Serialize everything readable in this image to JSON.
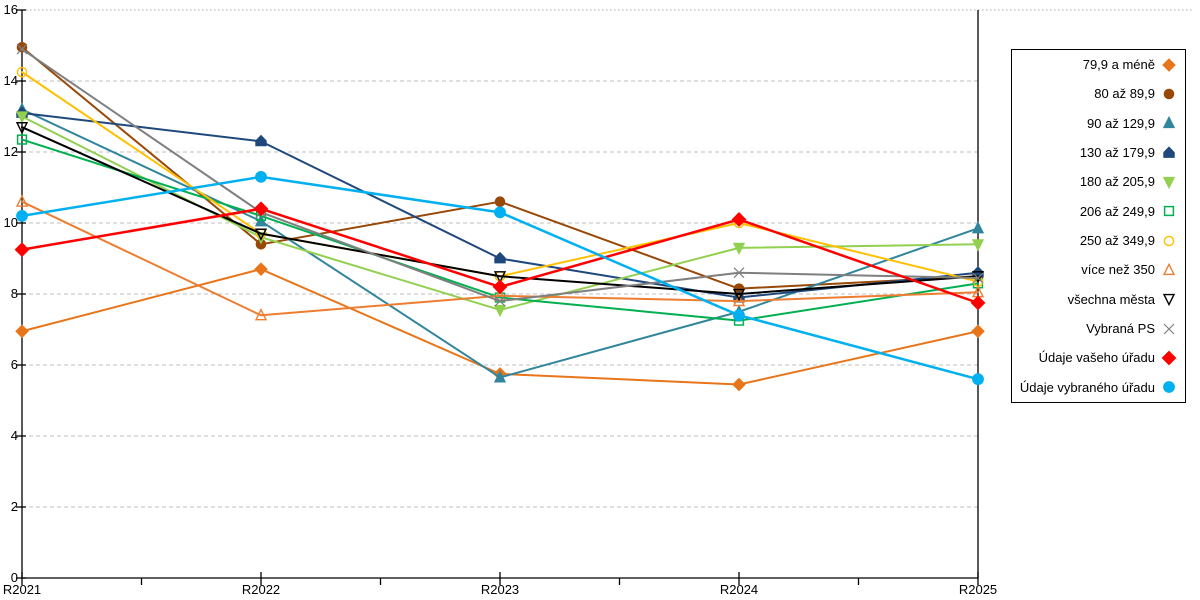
{
  "chart_data": {
    "type": "line",
    "title": "",
    "xlabel": "",
    "ylabel": "",
    "x_categories": [
      "R2021",
      "R2022",
      "R2023",
      "R2024",
      "R2025"
    ],
    "ylim": [
      0,
      16
    ],
    "ytick_step": 2,
    "ytick_labels": [
      "0",
      "2",
      "4",
      "6",
      "8",
      "10",
      "12",
      "14",
      "16"
    ],
    "grid": "horizontal-dashed",
    "legend_position": "right-outside-box",
    "series": [
      {
        "name": "79,9 a méně",
        "color": "#E8751A",
        "marker": "diamond",
        "fill": "filled",
        "line_width": 2,
        "values": [
          6.95,
          8.7,
          5.75,
          5.45,
          6.95
        ]
      },
      {
        "name": "80 až 89,9",
        "color": "#984807",
        "marker": "circle",
        "fill": "filled",
        "line_width": 2,
        "values": [
          14.95,
          9.4,
          10.6,
          8.15,
          8.5
        ]
      },
      {
        "name": "90 až 129,9",
        "color": "#31859C",
        "marker": "triangle-up",
        "fill": "filled",
        "line_width": 2,
        "values": [
          13.2,
          10.05,
          5.65,
          7.5,
          9.85
        ]
      },
      {
        "name": "130 až 179,9",
        "color": "#1F497D",
        "marker": "pentagon",
        "fill": "filled",
        "line_width": 2,
        "values": [
          13.1,
          12.3,
          9.0,
          7.9,
          8.6
        ]
      },
      {
        "name": "180 až 205,9",
        "color": "#92D050",
        "marker": "triangle-down",
        "fill": "filled",
        "line_width": 2,
        "values": [
          13.0,
          9.6,
          7.55,
          9.3,
          9.4
        ]
      },
      {
        "name": "206 až 249,9",
        "color": "#00B050",
        "marker": "square",
        "fill": "open",
        "line_width": 2,
        "values": [
          12.35,
          10.2,
          7.9,
          7.25,
          8.3
        ]
      },
      {
        "name": "250 až 349,9",
        "color": "#FFC000",
        "marker": "circle",
        "fill": "open",
        "line_width": 2,
        "values": [
          14.25,
          9.7,
          8.5,
          10.0,
          8.35
        ]
      },
      {
        "name": "více než 350",
        "color": "#ED7D31",
        "marker": "triangle-up",
        "fill": "open",
        "line_width": 2,
        "values": [
          10.6,
          7.4,
          7.95,
          7.8,
          8.05
        ]
      },
      {
        "name": "všechna města",
        "color": "#000000",
        "marker": "triangle-down",
        "fill": "open",
        "line_width": 2,
        "values": [
          12.7,
          9.7,
          8.5,
          8.0,
          8.5
        ]
      },
      {
        "name": "Vybraná PS",
        "color": "#7F7F7F",
        "marker": "x",
        "fill": "open",
        "line_width": 2,
        "values": [
          14.9,
          10.3,
          7.8,
          8.6,
          8.45
        ]
      },
      {
        "name": "Údaje vašeho úřadu",
        "color": "#FF0000",
        "marker": "diamond",
        "fill": "filled",
        "line_width": 2.5,
        "values": [
          9.25,
          10.4,
          8.2,
          10.1,
          7.75
        ]
      },
      {
        "name": "Údaje vybraného úřadu",
        "color": "#00B0F0",
        "marker": "circle",
        "fill": "filled",
        "line_width": 2.5,
        "values": [
          10.2,
          11.3,
          10.3,
          7.4,
          5.6
        ]
      }
    ],
    "colors": {
      "grid": "#BFBFBF",
      "grid_top_dotted": "#A6A6A6",
      "axis": "#000000",
      "legend_border": "#000000",
      "background": "#FFFFFF"
    }
  }
}
